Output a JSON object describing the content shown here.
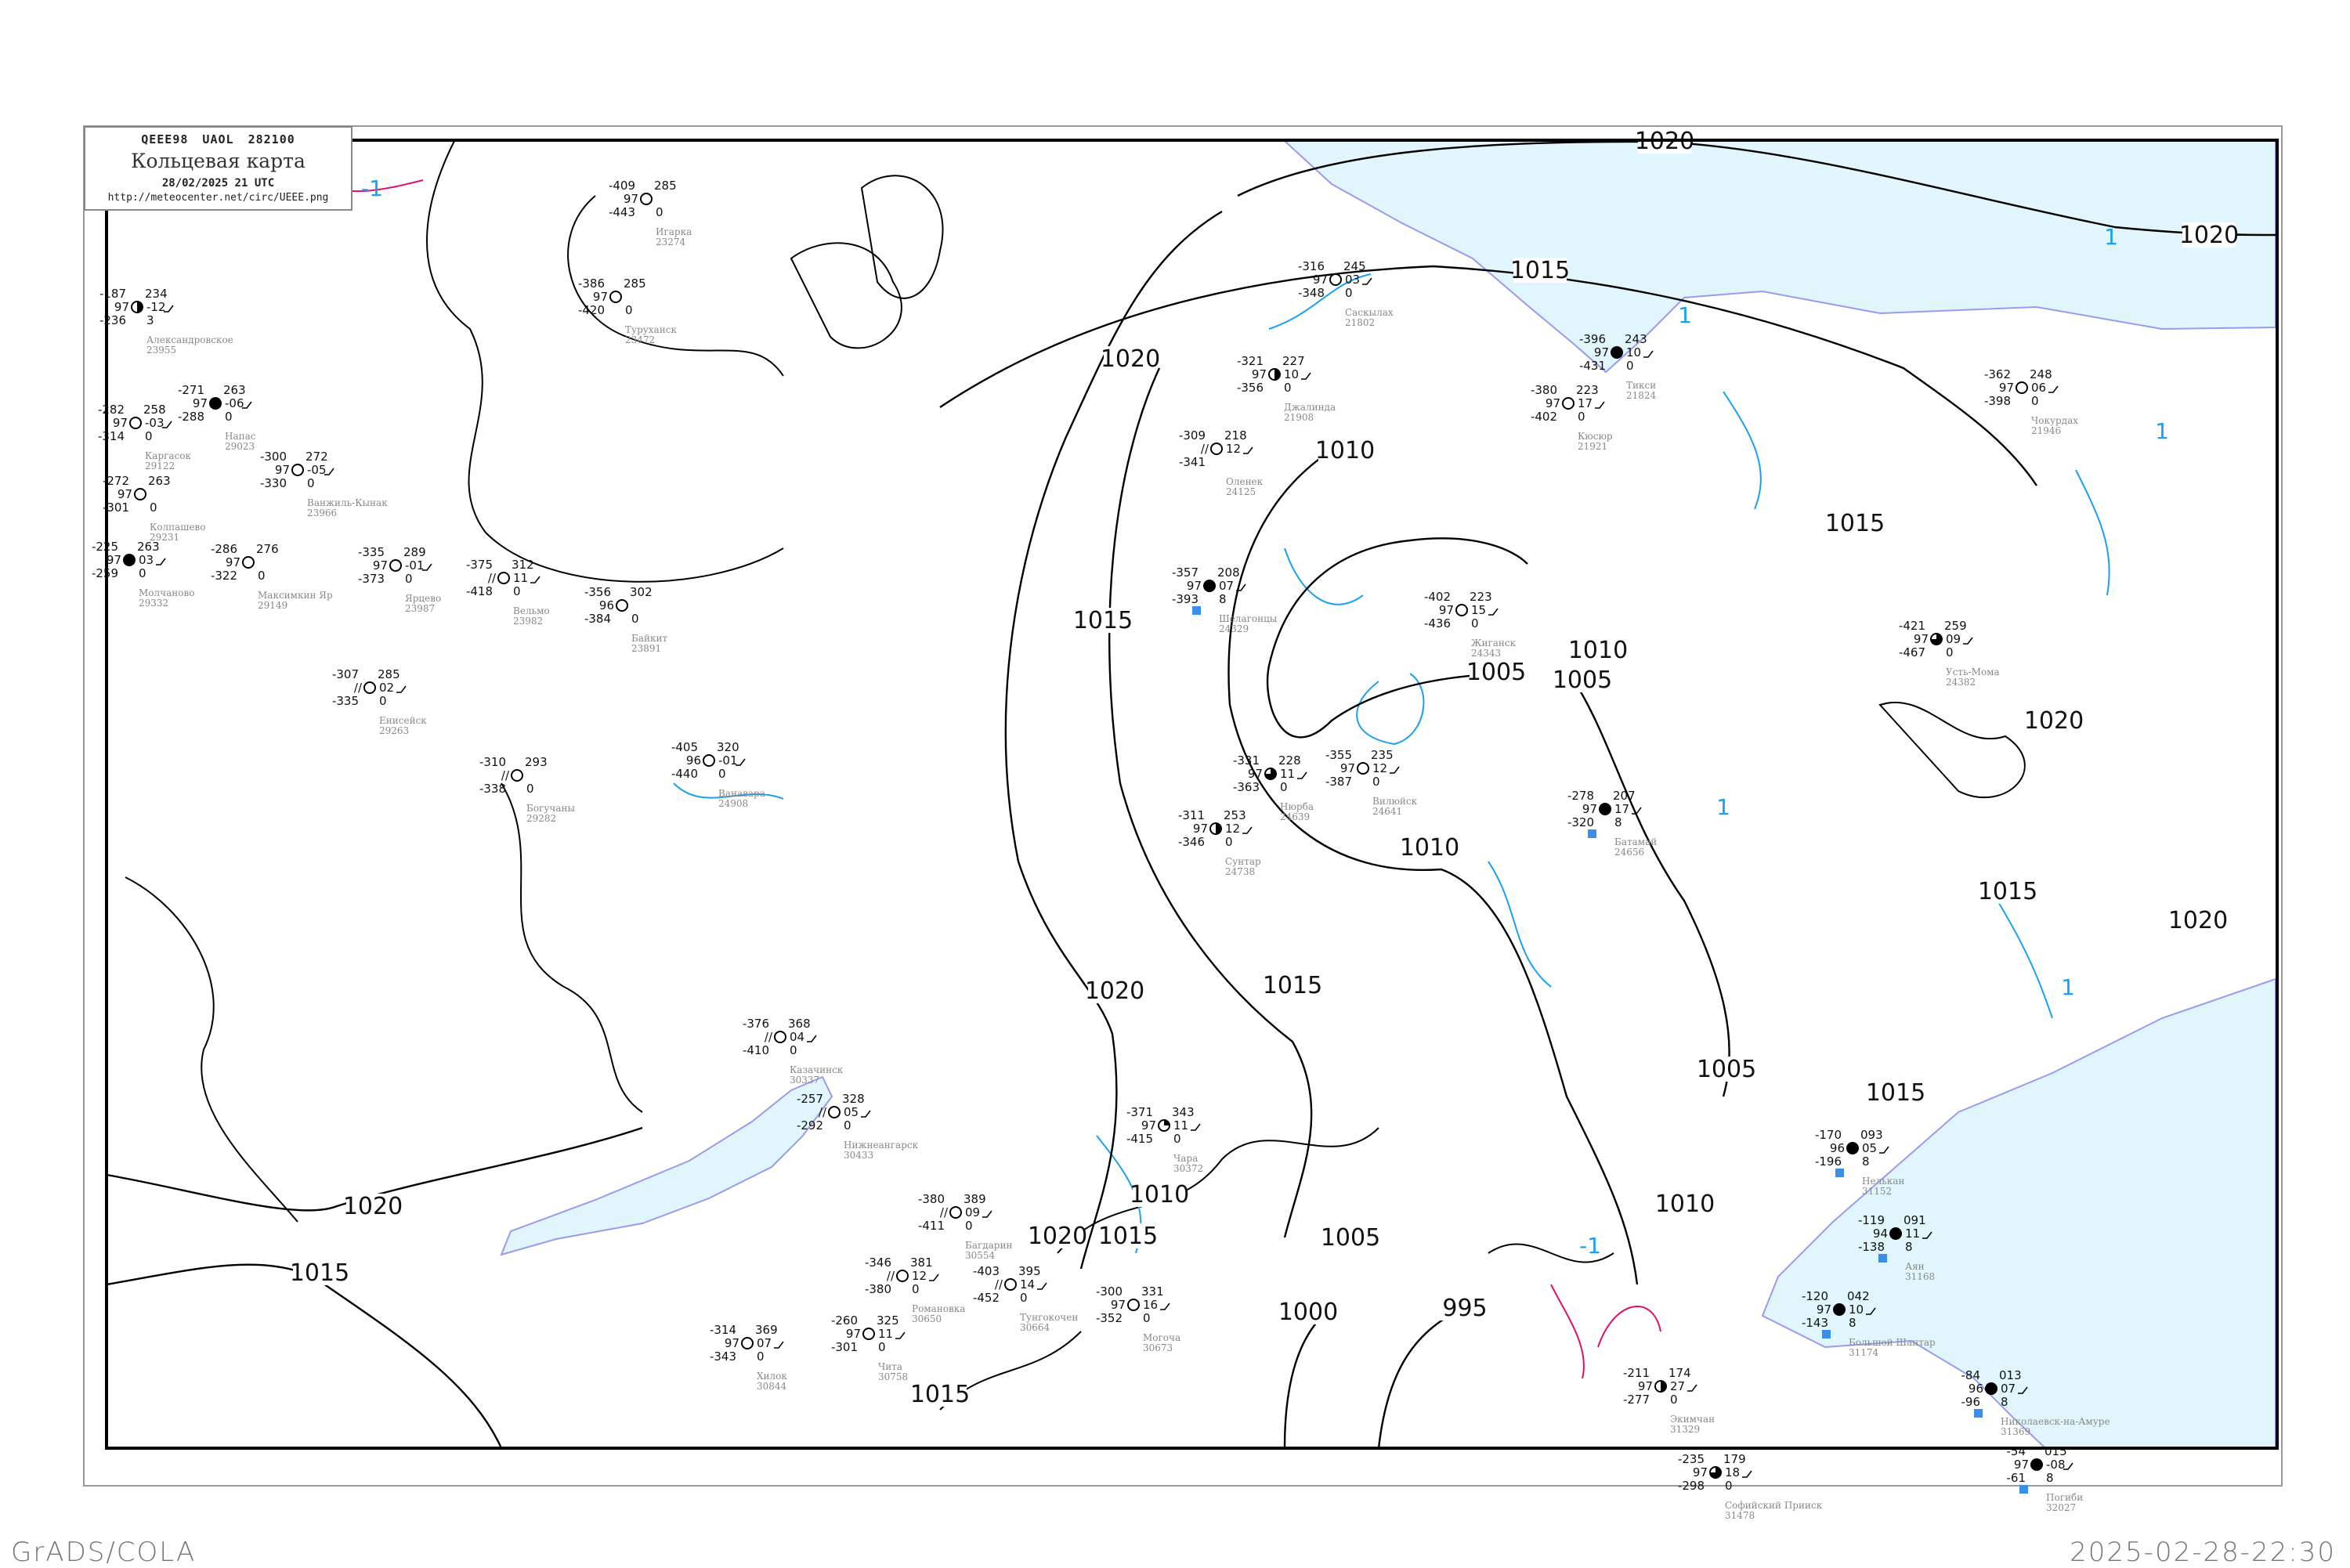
{
  "header": {
    "bulletin": "QEEE98  UAOL  282100",
    "title": "Кольцевая карта",
    "datetime": "28/02/2025 21 UTC",
    "url": "http://meteocenter.net/circ/UEEE.png"
  },
  "footer": {
    "software": "GrADS/COLA",
    "generated": "2025-02-28-22:30"
  },
  "colors": {
    "isobar": "#000000",
    "isotherm": "#1aa0f0",
    "isotherm_warm": "#e0106a",
    "sea": "#e0f6fc",
    "coast": "#9a9af0",
    "snow_marker": "#3b8fe8",
    "station_name": "#888888"
  },
  "isobar_labels": [
    "1020",
    "1020",
    "1020",
    "1020",
    "1020",
    "1020",
    "1020",
    "1020",
    "1015",
    "1015",
    "1015",
    "1015",
    "1015",
    "1015",
    "1015",
    "1015",
    "1015",
    "1010",
    "1010",
    "1010",
    "1010",
    "1010",
    "1005",
    "1005",
    "1005",
    "1005",
    "1000",
    "995"
  ],
  "isotherm_labels": [
    "1",
    "1",
    "1",
    "1",
    "1",
    "-1",
    "-1"
  ],
  "stations": [
    {
      "name": "Игарка",
      "id": "23274",
      "t": "-409",
      "vis": "97",
      "td": "-443",
      "p": "285",
      "dp": "",
      "w": "0",
      "cover": 0
    },
    {
      "name": "Туруханск",
      "id": "23472",
      "t": "-386",
      "vis": "97",
      "td": "-420",
      "p": "285",
      "dp": "",
      "w": "0",
      "cover": 0
    },
    {
      "name": "Александровское",
      "id": "23955",
      "t": "-187",
      "vis": "97",
      "td": "-236",
      "p": "234",
      "dp": "-12",
      "w": "3",
      "cover": 0.5
    },
    {
      "name": "Каргасок",
      "id": "29122",
      "t": "-282",
      "vis": "97",
      "td": "-314",
      "p": "258",
      "dp": "-03",
      "w": "0",
      "cover": 0
    },
    {
      "name": "Напас",
      "id": "29023",
      "t": "-271",
      "vis": "97",
      "td": "-288",
      "p": "263",
      "dp": "-06",
      "w": "0",
      "cover": 1
    },
    {
      "name": "Ванжиль-Кынак",
      "id": "23966",
      "t": "-300",
      "vis": "97",
      "td": "-330",
      "p": "272",
      "dp": "-05",
      "w": "0",
      "cover": 0
    },
    {
      "name": "Колпашево",
      "id": "29231",
      "t": "-272",
      "vis": "97",
      "td": "-301",
      "p": "263",
      "dp": "",
      "w": "0",
      "cover": 0
    },
    {
      "name": "Молчаново",
      "id": "29332",
      "t": "-225",
      "vis": "97",
      "td": "-259",
      "p": "263",
      "dp": "03",
      "w": "0",
      "cover": 1
    },
    {
      "name": "Максимкин Яр",
      "id": "29149",
      "t": "-286",
      "vis": "97",
      "td": "-322",
      "p": "276",
      "dp": "",
      "w": "0",
      "cover": 0
    },
    {
      "name": "Ярцево",
      "id": "23987",
      "t": "-335",
      "vis": "97",
      "td": "-373",
      "p": "289",
      "dp": "-01",
      "w": "0",
      "cover": 0
    },
    {
      "name": "Вельмо",
      "id": "23982",
      "t": "-375",
      "vis": "//",
      "td": "-418",
      "p": "312",
      "dp": "11",
      "w": "0",
      "cover": 0
    },
    {
      "name": "Байкит",
      "id": "23891",
      "t": "-356",
      "vis": "96",
      "td": "-384",
      "p": "302",
      "dp": "",
      "w": "0",
      "cover": 0
    },
    {
      "name": "Ванавара",
      "id": "24908",
      "t": "-405",
      "vis": "96",
      "td": "-440",
      "p": "320",
      "dp": "-01",
      "w": "0",
      "cover": 0
    },
    {
      "name": "Богучаны",
      "id": "29282",
      "t": "-310",
      "vis": "//",
      "td": "-338",
      "p": "293",
      "dp": "",
      "w": "0",
      "cover": 0
    },
    {
      "name": "Енисейск",
      "id": "29263",
      "t": "-307",
      "vis": "//",
      "td": "-335",
      "p": "285",
      "dp": "02",
      "w": "0",
      "cover": 0
    },
    {
      "name": "Саскылах",
      "id": "21802",
      "t": "-316",
      "vis": "97",
      "td": "-348",
      "p": "245",
      "dp": "03",
      "w": "0",
      "cover": 0
    },
    {
      "name": "Тикси",
      "id": "21824",
      "t": "-396",
      "vis": "97",
      "td": "-431",
      "p": "243",
      "dp": "10",
      "w": "0",
      "cover": 1
    },
    {
      "name": "Джалинда",
      "id": "21908",
      "t": "-321",
      "vis": "97",
      "td": "-356",
      "p": "227",
      "dp": "10",
      "w": "0",
      "cover": 0.5
    },
    {
      "name": "Кюсюр",
      "id": "21921",
      "t": "-380",
      "vis": "97",
      "td": "-402",
      "p": "223",
      "dp": "17",
      "w": "0",
      "cover": 0
    },
    {
      "name": "Оленек",
      "id": "24125",
      "t": "-309",
      "vis": "//",
      "td": "-341",
      "p": "218",
      "dp": "12",
      "w": "",
      "cover": 0
    },
    {
      "name": "Чокурдах",
      "id": "21946",
      "t": "-362",
      "vis": "97",
      "td": "-398",
      "p": "248",
      "dp": "06",
      "w": "0",
      "cover": 0
    },
    {
      "name": "Жиганск",
      "id": "24343",
      "t": "-402",
      "vis": "97",
      "td": "-436",
      "p": "223",
      "dp": "15",
      "w": "0",
      "cover": 0
    },
    {
      "name": "Шелагонцы",
      "id": "24329",
      "t": "-357",
      "vis": "97",
      "td": "-393",
      "p": "208",
      "dp": "07",
      "w": "8",
      "cover": 1
    },
    {
      "name": "Вилюйск",
      "id": "24641",
      "t": "-355",
      "vis": "97",
      "td": "-387",
      "p": "235",
      "dp": "12",
      "w": "0",
      "cover": 0
    },
    {
      "name": "Нюрба",
      "id": "24639",
      "t": "-331",
      "vis": "97",
      "td": "-363",
      "p": "228",
      "dp": "11",
      "w": "0",
      "cover": 0.75
    },
    {
      "name": "Сунтар",
      "id": "24738",
      "t": "-311",
      "vis": "97",
      "td": "-346",
      "p": "253",
      "dp": "12",
      "w": "0",
      "cover": 0.5
    },
    {
      "name": "Батамай",
      "id": "24656",
      "t": "-278",
      "vis": "97",
      "td": "-320",
      "p": "207",
      "dp": "17",
      "w": "8",
      "cover": 1
    },
    {
      "name": "Усть-Мома",
      "id": "24382",
      "t": "-421",
      "vis": "97",
      "td": "-467",
      "p": "259",
      "dp": "09",
      "w": "0",
      "cover": 0.75
    },
    {
      "name": "Казачинск",
      "id": "30337",
      "t": "-376",
      "vis": "//",
      "td": "-410",
      "p": "368",
      "dp": "04",
      "w": "0",
      "cover": 0
    },
    {
      "name": "Нижнеангарск",
      "id": "30433",
      "t": "-257",
      "vis": "//",
      "td": "-292",
      "p": "328",
      "dp": "05",
      "w": "0",
      "cover": 0
    },
    {
      "name": "Чара",
      "id": "30372",
      "t": "-371",
      "vis": "97",
      "td": "-415",
      "p": "343",
      "dp": "11",
      "w": "0",
      "cover": 0.25
    },
    {
      "name": "Багдарин",
      "id": "30554",
      "t": "-380",
      "vis": "//",
      "td": "-411",
      "p": "389",
      "dp": "09",
      "w": "0",
      "cover": 0
    },
    {
      "name": "Романовка",
      "id": "30650",
      "t": "-346",
      "vis": "//",
      "td": "-380",
      "p": "381",
      "dp": "12",
      "w": "0",
      "cover": 0
    },
    {
      "name": "Тунгокочен",
      "id": "30664",
      "t": "-403",
      "vis": "//",
      "td": "-452",
      "p": "395",
      "dp": "14",
      "w": "0",
      "cover": 0
    },
    {
      "name": "Чита",
      "id": "30758",
      "t": "-260",
      "vis": "97",
      "td": "-301",
      "p": "325",
      "dp": "11",
      "w": "0",
      "cover": 0
    },
    {
      "name": "Могоча",
      "id": "30673",
      "t": "-300",
      "vis": "97",
      "td": "-352",
      "p": "331",
      "dp": "16",
      "w": "0",
      "cover": 0
    },
    {
      "name": "Хилок",
      "id": "30844",
      "t": "-314",
      "vis": "97",
      "td": "-343",
      "p": "369",
      "dp": "07",
      "w": "0",
      "cover": 0
    },
    {
      "name": "Нелькан",
      "id": "31152",
      "t": "-170",
      "vis": "96",
      "td": "-196",
      "p": "093",
      "dp": "05",
      "w": "8",
      "cover": 1
    },
    {
      "name": "Аян",
      "id": "31168",
      "t": "-119",
      "vis": "94",
      "td": "-138",
      "p": "091",
      "dp": "11",
      "w": "8",
      "cover": 1
    },
    {
      "name": "Большой Шантар",
      "id": "31174",
      "t": "-120",
      "vis": "97",
      "td": "-143",
      "p": "042",
      "dp": "10",
      "w": "8",
      "cover": 1
    },
    {
      "name": "Экимчан",
      "id": "31329",
      "t": "-211",
      "vis": "97",
      "td": "-277",
      "p": "174",
      "dp": "27",
      "w": "0",
      "cover": 0.5
    },
    {
      "name": "Николаевск-на-Амуре",
      "id": "31369",
      "t": "-84",
      "vis": "96",
      "td": "-96",
      "p": "013",
      "dp": "07",
      "w": "8",
      "cover": 1
    },
    {
      "name": "Погиби",
      "id": "32027",
      "t": "-54",
      "vis": "97",
      "td": "-61",
      "p": "015",
      "dp": "-08",
      "w": "8",
      "cover": 1
    },
    {
      "name": "Софийский Прииск",
      "id": "31478",
      "t": "-235",
      "vis": "97",
      "td": "-298",
      "p": "179",
      "dp": "18",
      "w": "0",
      "cover": 0.75
    }
  ]
}
